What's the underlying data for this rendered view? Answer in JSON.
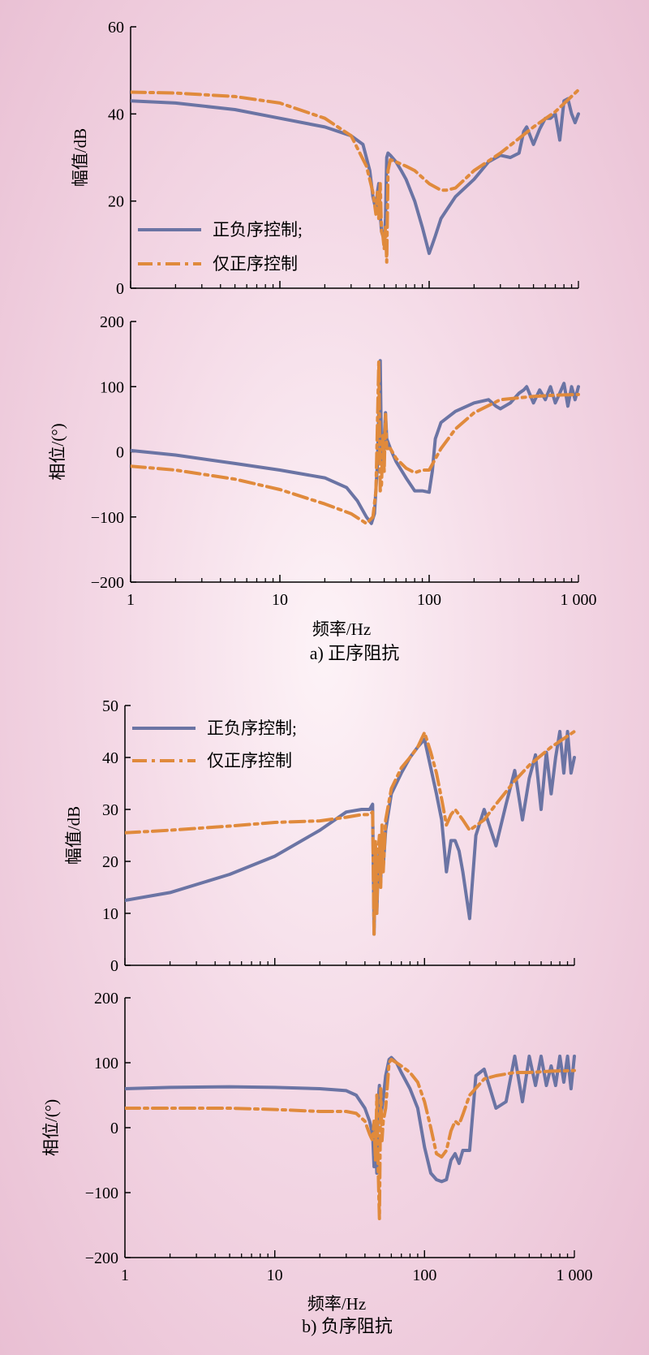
{
  "colors": {
    "series_solid": "#6b74a4",
    "series_dash": "#e08a3c",
    "axis": "#000000"
  },
  "captions": [
    "a) 正序阻抗",
    "b) 负序阻抗"
  ],
  "chart_data": [
    {
      "id": "a-magnitude",
      "type": "line",
      "xscale": "log",
      "xlim": [
        1,
        1000
      ],
      "ylim": [
        0,
        60
      ],
      "xlabel": "",
      "ylabel": "幅值/dB",
      "yticks": [
        {
          "v": 0,
          "label": "0"
        },
        {
          "v": 20,
          "label": "20"
        },
        {
          "v": 40,
          "label": "40"
        },
        {
          "v": 60,
          "label": "60"
        }
      ],
      "xticks": [],
      "legend": {
        "position": "bottom-left"
      },
      "series": [
        {
          "name": "正负序控制;",
          "style": "solid",
          "x": [
            1,
            2,
            5,
            10,
            20,
            30,
            36,
            40,
            42,
            44,
            45,
            46,
            47,
            48,
            49,
            50,
            51,
            52,
            53,
            55,
            60,
            65,
            70,
            80,
            90,
            100,
            105,
            110,
            120,
            150,
            200,
            250,
            300,
            350,
            400,
            430,
            450,
            500,
            550,
            600,
            650,
            700,
            750,
            800,
            850,
            900,
            950,
            1000
          ],
          "y": [
            43,
            42.5,
            41,
            39,
            37,
            35,
            33,
            27,
            21,
            18,
            22,
            24,
            17,
            13,
            12,
            11,
            16,
            30,
            31,
            30.5,
            29,
            27,
            25,
            20,
            14,
            8,
            10,
            12,
            16,
            21,
            25,
            29,
            30.5,
            30,
            31,
            36,
            37,
            33,
            36.5,
            39,
            39,
            40,
            34,
            43,
            43.5,
            40,
            38,
            40
          ]
        },
        {
          "name": "仅正序控制",
          "style": "dashdot",
          "x": [
            1,
            2,
            5,
            10,
            20,
            30,
            38,
            42,
            44,
            45,
            46,
            47,
            48,
            49,
            50,
            51,
            52,
            53,
            55,
            60,
            70,
            80,
            100,
            120,
            130,
            150,
            200,
            300,
            500,
            700,
            1000
          ],
          "y": [
            45,
            44.8,
            44,
            42.5,
            39,
            35,
            28,
            22,
            17,
            22,
            16,
            24,
            13,
            12,
            9,
            14,
            6,
            27,
            29.5,
            29,
            28,
            27,
            24,
            22.5,
            22.5,
            23,
            27,
            31,
            37,
            40.5,
            45.5
          ]
        }
      ]
    },
    {
      "id": "a-phase",
      "type": "line",
      "xscale": "log",
      "xlim": [
        1,
        1000
      ],
      "ylim": [
        -200,
        200
      ],
      "xlabel": "频率/Hz",
      "ylabel": "相位/(°)",
      "yticks": [
        {
          "v": -200,
          "label": "−200"
        },
        {
          "v": -100,
          "label": "−100"
        },
        {
          "v": 0,
          "label": "0"
        },
        {
          "v": 100,
          "label": "100"
        },
        {
          "v": 200,
          "label": "200"
        }
      ],
      "xticks": [
        {
          "v": 1,
          "label": "1"
        },
        {
          "v": 10,
          "label": "10"
        },
        {
          "v": 100,
          "label": "100"
        },
        {
          "v": 1000,
          "label": "1 000"
        }
      ],
      "series": [
        {
          "name": "正负序控制;",
          "style": "solid",
          "x": [
            1,
            2,
            5,
            10,
            20,
            28,
            33,
            38,
            41,
            43,
            45,
            46,
            47,
            48,
            49,
            50,
            51,
            52,
            55,
            60,
            70,
            80,
            90,
            100,
            105,
            110,
            120,
            150,
            200,
            250,
            280,
            300,
            350,
            400,
            430,
            450,
            500,
            550,
            600,
            650,
            700,
            750,
            800,
            850,
            900,
            950,
            1000
          ],
          "y": [
            2,
            -5,
            -18,
            -28,
            -40,
            -55,
            -75,
            -100,
            -110,
            -95,
            -20,
            60,
            140,
            -15,
            -20,
            20,
            60,
            20,
            5,
            -15,
            -40,
            -60,
            -60,
            -62,
            -30,
            20,
            45,
            62,
            75,
            80,
            70,
            66,
            75,
            90,
            95,
            100,
            75,
            95,
            80,
            100,
            75,
            90,
            105,
            70,
            100,
            80,
            100
          ]
        },
        {
          "name": "仅正序控制",
          "style": "dashdot",
          "x": [
            1,
            2,
            5,
            10,
            20,
            30,
            38,
            42,
            44,
            45,
            46,
            47,
            48,
            49,
            50,
            51,
            52,
            55,
            60,
            70,
            80,
            90,
            100,
            120,
            150,
            200,
            300,
            500,
            700,
            1000
          ],
          "y": [
            -22,
            -28,
            -42,
            -58,
            -80,
            -95,
            -110,
            -100,
            -60,
            40,
            138,
            -60,
            -50,
            25,
            -30,
            60,
            5,
            5,
            -10,
            -25,
            -32,
            -28,
            -28,
            5,
            35,
            60,
            80,
            85,
            87,
            88
          ]
        }
      ]
    },
    {
      "id": "b-magnitude",
      "type": "line",
      "xscale": "log",
      "xlim": [
        1,
        1000
      ],
      "ylim": [
        0,
        50
      ],
      "xlabel": "",
      "ylabel": "幅值/dB",
      "yticks": [
        {
          "v": 0,
          "label": "0"
        },
        {
          "v": 10,
          "label": "10"
        },
        {
          "v": 20,
          "label": "20"
        },
        {
          "v": 30,
          "label": "30"
        },
        {
          "v": 40,
          "label": "40"
        },
        {
          "v": 50,
          "label": "50"
        }
      ],
      "xticks": [],
      "legend": {
        "position": "top-left"
      },
      "series": [
        {
          "name": "正负序控制;",
          "style": "solid",
          "x": [
            1,
            2,
            5,
            10,
            20,
            30,
            38,
            43,
            45,
            46,
            47,
            48,
            49,
            50,
            51,
            52,
            53,
            55,
            60,
            70,
            80,
            90,
            100,
            110,
            120,
            130,
            140,
            150,
            160,
            170,
            180,
            200,
            220,
            250,
            300,
            350,
            400,
            450,
            500,
            550,
            600,
            650,
            700,
            750,
            800,
            850,
            900,
            950,
            1000
          ],
          "y": [
            12.5,
            14,
            17.5,
            21,
            26,
            29.5,
            30,
            30,
            31,
            6,
            20,
            10,
            19,
            22,
            16,
            25,
            19,
            26,
            33,
            37,
            40,
            42,
            43.5,
            38,
            33,
            28,
            18,
            24,
            24,
            22,
            18,
            9,
            25,
            30,
            23,
            31,
            37.5,
            28,
            36,
            40.5,
            30,
            41,
            33,
            40,
            45,
            37,
            45,
            37,
            40
          ]
        },
        {
          "name": "仅正序控制",
          "style": "dashdot",
          "x": [
            1,
            2,
            5,
            10,
            20,
            30,
            38,
            43,
            45,
            46,
            47,
            48,
            49,
            50,
            51,
            52,
            53,
            55,
            60,
            70,
            80,
            90,
            100,
            110,
            120,
            130,
            140,
            150,
            160,
            180,
            200,
            250,
            300,
            400,
            500,
            700,
            1000
          ],
          "y": [
            25.5,
            26,
            26.8,
            27.5,
            27.8,
            28.5,
            29,
            29,
            29.5,
            6,
            24,
            10,
            22,
            25,
            15,
            27,
            18,
            28,
            34,
            38,
            40,
            42,
            44.8,
            41,
            37,
            32,
            27,
            29,
            30,
            28,
            26,
            28,
            31,
            35.5,
            38.5,
            42,
            45
          ]
        }
      ]
    },
    {
      "id": "b-phase",
      "type": "line",
      "xscale": "log",
      "xlim": [
        1,
        1000
      ],
      "ylim": [
        -200,
        200
      ],
      "xlabel": "频率/Hz",
      "ylabel": "相位/(°)",
      "yticks": [
        {
          "v": -200,
          "label": "−200"
        },
        {
          "v": -100,
          "label": "−100"
        },
        {
          "v": 0,
          "label": "0"
        },
        {
          "v": 100,
          "label": "100"
        },
        {
          "v": 200,
          "label": "200"
        }
      ],
      "xticks": [
        {
          "v": 1,
          "label": "1"
        },
        {
          "v": 10,
          "label": "10"
        },
        {
          "v": 100,
          "label": "100"
        },
        {
          "v": 1000,
          "label": "1 000"
        }
      ],
      "series": [
        {
          "name": "正负序控制;",
          "style": "solid",
          "x": [
            1,
            2,
            5,
            10,
            20,
            30,
            35,
            40,
            43,
            45,
            46,
            47,
            48,
            49,
            50,
            51,
            52,
            53,
            55,
            58,
            60,
            65,
            70,
            80,
            90,
            100,
            110,
            120,
            130,
            140,
            150,
            160,
            170,
            180,
            200,
            220,
            250,
            300,
            350,
            400,
            450,
            500,
            550,
            600,
            650,
            700,
            750,
            800,
            850,
            900,
            950,
            1000
          ],
          "y": [
            60,
            62,
            63,
            62,
            60,
            57,
            50,
            30,
            10,
            -10,
            -60,
            0,
            -70,
            40,
            65,
            20,
            30,
            45,
            80,
            105,
            108,
            100,
            85,
            60,
            30,
            -30,
            -70,
            -80,
            -83,
            -80,
            -50,
            -40,
            -55,
            -35,
            -35,
            80,
            90,
            30,
            40,
            110,
            40,
            110,
            65,
            110,
            65,
            95,
            65,
            110,
            70,
            110,
            60,
            110
          ]
        },
        {
          "name": "仅正序控制",
          "style": "dashdot",
          "x": [
            1,
            2,
            5,
            10,
            20,
            30,
            35,
            40,
            43,
            45,
            46,
            47,
            48,
            49,
            50,
            51,
            52,
            53,
            55,
            58,
            60,
            65,
            70,
            80,
            90,
            100,
            110,
            120,
            130,
            140,
            150,
            160,
            170,
            180,
            200,
            250,
            300,
            400,
            500,
            700,
            1000
          ],
          "y": [
            30,
            30,
            30,
            28,
            25,
            25,
            22,
            10,
            -10,
            -20,
            10,
            -50,
            50,
            -60,
            -140,
            60,
            -20,
            10,
            30,
            100,
            105,
            100,
            95,
            85,
            70,
            40,
            0,
            -40,
            -45,
            -35,
            -5,
            10,
            5,
            20,
            50,
            75,
            80,
            85,
            85,
            87,
            88
          ]
        }
      ]
    }
  ]
}
